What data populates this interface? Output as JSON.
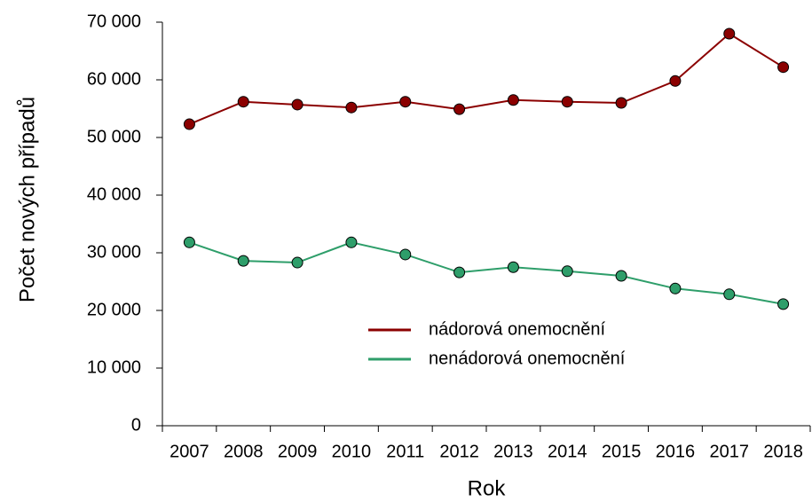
{
  "chart_data": {
    "type": "line",
    "x_label": "Rok",
    "y_label": "Počet nových případů",
    "categories": [
      "2007",
      "2008",
      "2009",
      "2010",
      "2011",
      "2012",
      "2013",
      "2014",
      "2015",
      "2016",
      "2017",
      "2018"
    ],
    "series": [
      {
        "name": "nádorová onemocnění",
        "color": "#8b0000",
        "values": [
          52300,
          56200,
          55700,
          55200,
          56200,
          54900,
          56500,
          56200,
          56000,
          59800,
          68000,
          62200
        ]
      },
      {
        "name": "nenádorová onemocnění",
        "color": "#2e9e6a",
        "values": [
          31800,
          28600,
          28300,
          31800,
          29700,
          26600,
          27500,
          26800,
          26000,
          23800,
          22800,
          21100
        ]
      }
    ],
    "ylim": [
      0,
      70000
    ],
    "yticks": [
      0,
      {
        "value": 10000,
        "label": "10 000"
      },
      {
        "value": 20000,
        "label": "20 000"
      },
      {
        "value": 30000,
        "label": "30 000"
      },
      {
        "value": 40000,
        "label": "40 000"
      },
      {
        "value": 50000,
        "label": "50 000"
      },
      {
        "value": 60000,
        "label": "60 000"
      },
      {
        "value": 70000,
        "label": "70 000"
      }
    ],
    "grid": false
  }
}
